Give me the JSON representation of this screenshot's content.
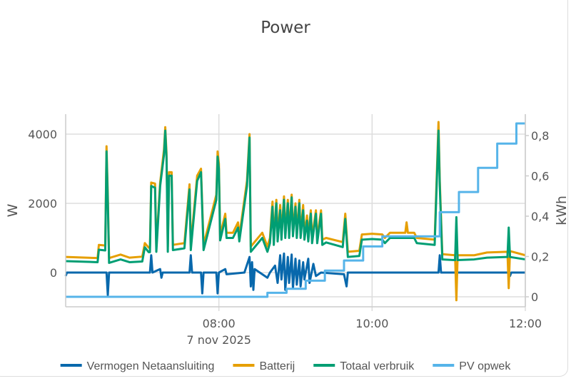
{
  "chart_data": {
    "type": "line",
    "title": "Power",
    "xlabel": "7 nov 2025",
    "ylabel": "W",
    "y2label": "kWh",
    "xlim": [
      "06:00",
      "12:00"
    ],
    "ylim": [
      -1000,
      4600
    ],
    "y2lim": [
      -0.05,
      0.9
    ],
    "grid": true,
    "legend_position": "bottom",
    "x_ticks": [
      "08:00",
      "10:00",
      "12:00"
    ],
    "y_ticks": [
      "0",
      "2000",
      "4000"
    ],
    "y2_ticks": [
      "0",
      "0,2",
      "0,4",
      "0,6",
      "0,8"
    ],
    "series": [
      {
        "name": "Vermogen Netaansluiting",
        "axis": "left",
        "color": "#0868ac",
        "points": [
          [
            "06:00",
            -100
          ],
          [
            "06:01",
            0
          ],
          [
            "06:32",
            0
          ],
          [
            "06:33",
            -650
          ],
          [
            "06:34",
            0
          ],
          [
            "07:06",
            0
          ],
          [
            "07:07",
            500
          ],
          [
            "07:08",
            0
          ],
          [
            "07:14",
            100
          ],
          [
            "07:15",
            -150
          ],
          [
            "07:16",
            0
          ],
          [
            "07:37",
            0
          ],
          [
            "07:38",
            500
          ],
          [
            "07:39",
            0
          ],
          [
            "07:46",
            0
          ],
          [
            "07:47",
            -600
          ],
          [
            "07:48",
            0
          ],
          [
            "07:58",
            0
          ],
          [
            "07:59",
            -600
          ],
          [
            "08:00",
            0
          ],
          [
            "08:05",
            100
          ],
          [
            "08:06",
            -50
          ],
          [
            "08:20",
            0
          ],
          [
            "08:24",
            450
          ],
          [
            "08:25",
            -400
          ],
          [
            "08:26",
            300
          ],
          [
            "08:27",
            -500
          ],
          [
            "08:28",
            100
          ],
          [
            "08:32",
            0
          ],
          [
            "08:38",
            -150
          ],
          [
            "08:40",
            0
          ],
          [
            "08:44",
            200
          ],
          [
            "08:46",
            -300
          ],
          [
            "08:48",
            500
          ],
          [
            "08:49",
            -200
          ],
          [
            "08:51",
            550
          ],
          [
            "08:52",
            -500
          ],
          [
            "08:54",
            450
          ],
          [
            "08:55",
            -300
          ],
          [
            "08:57",
            520
          ],
          [
            "08:58",
            -450
          ],
          [
            "09:00",
            400
          ],
          [
            "09:01",
            -350
          ],
          [
            "09:03",
            350
          ],
          [
            "09:04",
            -400
          ],
          [
            "09:06",
            300
          ],
          [
            "09:07",
            -200
          ],
          [
            "09:10",
            400
          ],
          [
            "09:11",
            -300
          ],
          [
            "09:14",
            250
          ],
          [
            "09:16",
            -100
          ],
          [
            "09:20",
            0
          ],
          [
            "09:38",
            -50
          ],
          [
            "09:40",
            -400
          ],
          [
            "09:41",
            0
          ],
          [
            "10:52",
            0
          ],
          [
            "10:53",
            500
          ],
          [
            "10:54",
            0
          ],
          [
            "11:47",
            0
          ],
          [
            "11:48",
            -100
          ],
          [
            "11:49",
            0
          ],
          [
            "12:00",
            0
          ]
        ]
      },
      {
        "name": "Batterij",
        "axis": "left",
        "color": "#e69f00",
        "points": [
          [
            "06:00",
            450
          ],
          [
            "06:25",
            420
          ],
          [
            "06:26",
            800
          ],
          [
            "06:31",
            780
          ],
          [
            "06:32",
            3650
          ],
          [
            "06:33",
            2250
          ],
          [
            "06:34",
            420
          ],
          [
            "06:43",
            520
          ],
          [
            "06:50",
            430
          ],
          [
            "07:00",
            460
          ],
          [
            "07:02",
            850
          ],
          [
            "07:05",
            720
          ],
          [
            "07:06",
            720
          ],
          [
            "07:07",
            2600
          ],
          [
            "07:10",
            2570
          ],
          [
            "07:11",
            750
          ],
          [
            "07:14",
            2600
          ],
          [
            "07:17",
            3550
          ],
          [
            "07:18",
            4200
          ],
          [
            "07:19",
            3450
          ],
          [
            "07:20",
            750
          ],
          [
            "07:21",
            2900
          ],
          [
            "07:23",
            2900
          ],
          [
            "07:24",
            800
          ],
          [
            "07:33",
            850
          ],
          [
            "07:37",
            2550
          ],
          [
            "07:38",
            800
          ],
          [
            "07:43",
            2800
          ],
          [
            "07:46",
            3000
          ],
          [
            "07:48",
            800
          ],
          [
            "07:58",
            2250
          ],
          [
            "07:59",
            3500
          ],
          [
            "08:00",
            3150
          ],
          [
            "08:01",
            1080
          ],
          [
            "08:05",
            1700
          ],
          [
            "08:06",
            1150
          ],
          [
            "08:11",
            1150
          ],
          [
            "08:15",
            1450
          ],
          [
            "08:16",
            1050
          ],
          [
            "08:22",
            2650
          ],
          [
            "08:24",
            4000
          ],
          [
            "08:25",
            750
          ],
          [
            "08:34",
            1150
          ],
          [
            "08:38",
            750
          ],
          [
            "08:40",
            1000
          ],
          [
            "08:42",
            2050
          ],
          [
            "08:43",
            950
          ],
          [
            "08:45",
            2100
          ],
          [
            "08:46",
            1050
          ],
          [
            "08:48",
            1950
          ],
          [
            "08:49",
            1100
          ],
          [
            "08:51",
            2200
          ],
          [
            "08:52",
            1150
          ],
          [
            "08:54",
            2100
          ],
          [
            "08:55",
            1150
          ],
          [
            "08:57",
            2250
          ],
          [
            "08:58",
            1200
          ],
          [
            "09:00",
            2000
          ],
          [
            "09:01",
            1150
          ],
          [
            "09:03",
            2100
          ],
          [
            "09:04",
            1150
          ],
          [
            "09:06",
            1950
          ],
          [
            "09:07",
            1100
          ],
          [
            "09:09",
            1650
          ],
          [
            "09:10",
            1050
          ],
          [
            "09:12",
            1800
          ],
          [
            "09:13",
            1000
          ],
          [
            "09:16",
            1800
          ],
          [
            "09:17",
            1000
          ],
          [
            "09:20",
            1800
          ],
          [
            "09:21",
            950
          ],
          [
            "09:24",
            1000
          ],
          [
            "09:37",
            880
          ],
          [
            "09:39",
            1700
          ],
          [
            "09:41",
            600
          ],
          [
            "09:50",
            630
          ],
          [
            "09:52",
            1100
          ],
          [
            "10:00",
            1120
          ],
          [
            "10:08",
            1100
          ],
          [
            "10:10",
            1000
          ],
          [
            "10:14",
            1150
          ],
          [
            "10:26",
            1150
          ],
          [
            "10:27",
            1450
          ],
          [
            "10:28",
            1150
          ],
          [
            "10:33",
            1150
          ],
          [
            "10:35",
            1000
          ],
          [
            "10:49",
            950
          ],
          [
            "10:52",
            4350
          ],
          [
            "10:53",
            2650
          ],
          [
            "10:55",
            530
          ],
          [
            "11:05",
            500
          ],
          [
            "11:06",
            -800
          ],
          [
            "11:07",
            500
          ],
          [
            "11:20",
            500
          ],
          [
            "11:30",
            580
          ],
          [
            "11:46",
            600
          ],
          [
            "11:47",
            -450
          ],
          [
            "11:48",
            620
          ],
          [
            "12:00",
            500
          ]
        ]
      },
      {
        "name": "Totaal verbruik",
        "axis": "left",
        "color": "#009e73",
        "points": [
          [
            "06:00",
            330
          ],
          [
            "06:25",
            300
          ],
          [
            "06:26",
            660
          ],
          [
            "06:31",
            640
          ],
          [
            "06:32",
            3500
          ],
          [
            "06:33",
            2100
          ],
          [
            "06:34",
            280
          ],
          [
            "06:43",
            380
          ],
          [
            "06:50",
            300
          ],
          [
            "07:00",
            320
          ],
          [
            "07:02",
            730
          ],
          [
            "07:05",
            590
          ],
          [
            "07:06",
            590
          ],
          [
            "07:07",
            2500
          ],
          [
            "07:10",
            2450
          ],
          [
            "07:11",
            600
          ],
          [
            "07:14",
            2500
          ],
          [
            "07:17",
            3400
          ],
          [
            "07:18",
            4100
          ],
          [
            "07:19",
            3300
          ],
          [
            "07:20",
            600
          ],
          [
            "07:21",
            2800
          ],
          [
            "07:23",
            2800
          ],
          [
            "07:24",
            650
          ],
          [
            "07:33",
            700
          ],
          [
            "07:37",
            2400
          ],
          [
            "07:38",
            650
          ],
          [
            "07:43",
            2650
          ],
          [
            "07:46",
            2900
          ],
          [
            "07:48",
            650
          ],
          [
            "07:58",
            2100
          ],
          [
            "07:59",
            3350
          ],
          [
            "08:00",
            3000
          ],
          [
            "08:01",
            930
          ],
          [
            "08:05",
            1550
          ],
          [
            "08:06",
            1000
          ],
          [
            "08:11",
            1000
          ],
          [
            "08:15",
            1300
          ],
          [
            "08:16",
            900
          ],
          [
            "08:22",
            2500
          ],
          [
            "08:24",
            3900
          ],
          [
            "08:25",
            600
          ],
          [
            "08:34",
            1000
          ],
          [
            "08:38",
            600
          ],
          [
            "08:40",
            850
          ],
          [
            "08:42",
            1900
          ],
          [
            "08:43",
            800
          ],
          [
            "08:45",
            2000
          ],
          [
            "08:46",
            900
          ],
          [
            "08:48",
            1800
          ],
          [
            "08:49",
            950
          ],
          [
            "08:51",
            2100
          ],
          [
            "08:52",
            1000
          ],
          [
            "08:54",
            2000
          ],
          [
            "08:55",
            1000
          ],
          [
            "08:57",
            2170
          ],
          [
            "08:58",
            1050
          ],
          [
            "09:00",
            1900
          ],
          [
            "09:01",
            1000
          ],
          [
            "09:03",
            2000
          ],
          [
            "09:04",
            1000
          ],
          [
            "09:06",
            1800
          ],
          [
            "09:07",
            950
          ],
          [
            "09:09",
            1500
          ],
          [
            "09:10",
            900
          ],
          [
            "09:12",
            1700
          ],
          [
            "09:13",
            850
          ],
          [
            "09:16",
            1700
          ],
          [
            "09:17",
            850
          ],
          [
            "09:20",
            1700
          ],
          [
            "09:21",
            800
          ],
          [
            "09:24",
            870
          ],
          [
            "09:37",
            735
          ],
          [
            "09:39",
            1550
          ],
          [
            "09:41",
            450
          ],
          [
            "09:50",
            480
          ],
          [
            "09:52",
            950
          ],
          [
            "10:00",
            970
          ],
          [
            "10:08",
            950
          ],
          [
            "10:10",
            850
          ],
          [
            "10:14",
            1000
          ],
          [
            "10:33",
            1000
          ],
          [
            "10:35",
            850
          ],
          [
            "10:49",
            800
          ],
          [
            "10:52",
            4100
          ],
          [
            "10:53",
            2500
          ],
          [
            "10:55",
            380
          ],
          [
            "11:05",
            360
          ],
          [
            "11:06",
            1600
          ],
          [
            "11:07",
            360
          ],
          [
            "11:20",
            380
          ],
          [
            "11:30",
            430
          ],
          [
            "11:46",
            450
          ],
          [
            "11:47",
            1300
          ],
          [
            "11:48",
            450
          ],
          [
            "12:00",
            380
          ]
        ]
      },
      {
        "name": "PV opwek",
        "axis": "right",
        "color": "#56b4e9",
        "step": true,
        "points": [
          [
            "06:00",
            0
          ],
          [
            "08:38",
            0.02
          ],
          [
            "08:53",
            0.04
          ],
          [
            "09:08",
            0.08
          ],
          [
            "09:23",
            0.13
          ],
          [
            "09:38",
            0.18
          ],
          [
            "09:53",
            0.25
          ],
          [
            "10:08",
            0.3
          ],
          [
            "10:53",
            0.42
          ],
          [
            "11:08",
            0.52
          ],
          [
            "11:23",
            0.64
          ],
          [
            "11:38",
            0.76
          ],
          [
            "11:53",
            0.86
          ],
          [
            "12:00",
            0.86
          ]
        ]
      }
    ]
  }
}
